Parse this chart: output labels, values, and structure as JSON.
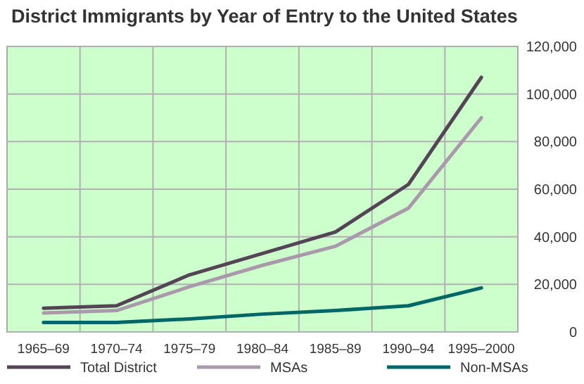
{
  "chart_data": {
    "type": "line",
    "title": "District Immigrants by Year of Entry to the United States",
    "categories": [
      "1965–69",
      "1970–74",
      "1975–79",
      "1980–84",
      "1985–89",
      "1990–94",
      "1995–2000"
    ],
    "series": [
      {
        "name": "Total District",
        "color": "#554455",
        "values": [
          10000,
          11000,
          24000,
          33000,
          42000,
          62000,
          107000
        ]
      },
      {
        "name": "MSAs",
        "color": "#aa99aa",
        "values": [
          8000,
          9000,
          19000,
          28000,
          36000,
          52000,
          90000
        ]
      },
      {
        "name": "Non-MSAs",
        "color": "#006666",
        "values": [
          4000,
          4000,
          5500,
          7500,
          9000,
          11000,
          18500
        ]
      }
    ],
    "ylim": [
      0,
      120000
    ],
    "yticks": [
      {
        "value": 0,
        "label": "0"
      },
      {
        "value": 20000,
        "label": "20,000"
      },
      {
        "value": 40000,
        "label": "40,000"
      },
      {
        "value": 60000,
        "label": "60,000"
      },
      {
        "value": 80000,
        "label": "80,000"
      },
      {
        "value": 100000,
        "label": "100,000"
      },
      {
        "value": 120000,
        "label": "120,000"
      }
    ],
    "grid": true,
    "legend": "bottom",
    "marker": "none",
    "line_style": "solid"
  }
}
